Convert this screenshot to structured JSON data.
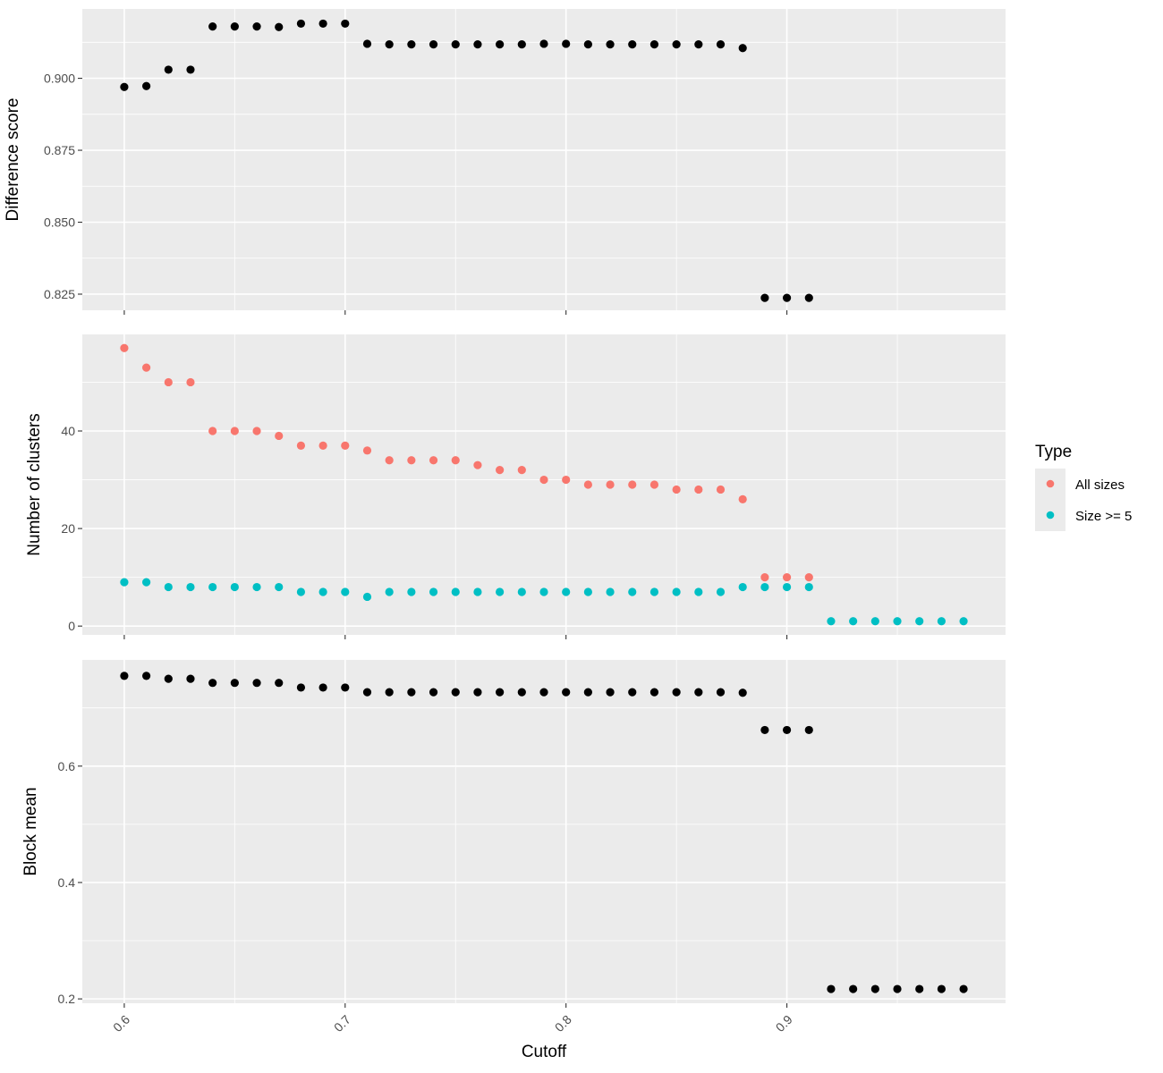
{
  "chart_data": {
    "type": "scatter",
    "x_label": "Cutoff",
    "x_ticks": [
      "0.6",
      "0.7",
      "0.8",
      "0.9"
    ],
    "xlim": [
      0.581,
      0.999
    ],
    "legend": {
      "title": "Type",
      "placement": "right",
      "entries": [
        {
          "name": "All sizes",
          "color": "#F8766D"
        },
        {
          "name": "Size >= 5",
          "color": "#00BFC4"
        }
      ]
    },
    "panels": [
      {
        "ylabel": "Difference score",
        "ylim": [
          0.8194,
          0.9241
        ],
        "y_ticks": [
          "0.825",
          "0.850",
          "0.875",
          "0.900"
        ],
        "tick_values": [
          0.825,
          0.85,
          0.875,
          0.9
        ],
        "series": [
          {
            "color": "#000000",
            "x": [
              0.6,
              0.61,
              0.62,
              0.63,
              0.64,
              0.65,
              0.66,
              0.67,
              0.68,
              0.69,
              0.7,
              0.71,
              0.72,
              0.73,
              0.74,
              0.75,
              0.76,
              0.77,
              0.78,
              0.79,
              0.8,
              0.81,
              0.82,
              0.83,
              0.84,
              0.85,
              0.86,
              0.87,
              0.88,
              0.89,
              0.9,
              0.91
            ],
            "y": [
              0.897,
              0.8973,
              0.903,
              0.903,
              0.918,
              0.918,
              0.918,
              0.9178,
              0.919,
              0.919,
              0.919,
              0.912,
              0.9118,
              0.9118,
              0.9118,
              0.9118,
              0.9118,
              0.9118,
              0.9118,
              0.912,
              0.912,
              0.9118,
              0.9118,
              0.9118,
              0.9118,
              0.9118,
              0.9118,
              0.9118,
              0.9105,
              0.8237,
              0.8237,
              0.8237
            ]
          }
        ]
      },
      {
        "ylabel": "Number of clusters",
        "ylim": [
          -1.8,
          59.8
        ],
        "y_ticks": [
          "0",
          "20",
          "40"
        ],
        "tick_values": [
          0,
          20,
          40
        ],
        "series": [
          {
            "name": "All sizes",
            "color": "#F8766D",
            "x": [
              0.6,
              0.61,
              0.62,
              0.63,
              0.64,
              0.65,
              0.66,
              0.67,
              0.68,
              0.69,
              0.7,
              0.71,
              0.72,
              0.73,
              0.74,
              0.75,
              0.76,
              0.77,
              0.78,
              0.79,
              0.8,
              0.81,
              0.82,
              0.83,
              0.84,
              0.85,
              0.86,
              0.87,
              0.88,
              0.89,
              0.9,
              0.91
            ],
            "y": [
              57,
              53,
              50,
              50,
              40,
              40,
              40,
              39,
              37,
              37,
              37,
              36,
              34,
              34,
              34,
              34,
              33,
              32,
              32,
              30,
              30,
              29,
              29,
              29,
              29,
              28,
              28,
              28,
              26,
              10,
              10,
              10
            ]
          },
          {
            "name": "Size >= 5",
            "color": "#00BFC4",
            "x": [
              0.6,
              0.61,
              0.62,
              0.63,
              0.64,
              0.65,
              0.66,
              0.67,
              0.68,
              0.69,
              0.7,
              0.71,
              0.72,
              0.73,
              0.74,
              0.75,
              0.76,
              0.77,
              0.78,
              0.79,
              0.8,
              0.81,
              0.82,
              0.83,
              0.84,
              0.85,
              0.86,
              0.87,
              0.88,
              0.89,
              0.9,
              0.91,
              0.92,
              0.93,
              0.94,
              0.95,
              0.96,
              0.97,
              0.98
            ],
            "y": [
              9,
              9,
              8,
              8,
              8,
              8,
              8,
              8,
              7,
              7,
              7,
              6,
              7,
              7,
              7,
              7,
              7,
              7,
              7,
              7,
              7,
              7,
              7,
              7,
              7,
              7,
              7,
              7,
              8,
              8,
              8,
              8,
              1,
              1,
              1,
              1,
              1,
              1,
              1
            ]
          }
        ]
      },
      {
        "ylabel": "Block mean",
        "ylim": [
          0.1925,
          0.7825
        ],
        "y_ticks": [
          "0.2",
          "0.4",
          "0.6"
        ],
        "tick_values": [
          0.2,
          0.4,
          0.6
        ],
        "series": [
          {
            "color": "#000000",
            "x": [
              0.6,
              0.61,
              0.62,
              0.63,
              0.64,
              0.65,
              0.66,
              0.67,
              0.68,
              0.69,
              0.7,
              0.71,
              0.72,
              0.73,
              0.74,
              0.75,
              0.76,
              0.77,
              0.78,
              0.79,
              0.8,
              0.81,
              0.82,
              0.83,
              0.84,
              0.85,
              0.86,
              0.87,
              0.88,
              0.89,
              0.9,
              0.91,
              0.92,
              0.93,
              0.94,
              0.95,
              0.96,
              0.97,
              0.98
            ],
            "y": [
              0.755,
              0.755,
              0.75,
              0.75,
              0.743,
              0.743,
              0.743,
              0.743,
              0.735,
              0.735,
              0.735,
              0.727,
              0.727,
              0.727,
              0.727,
              0.727,
              0.727,
              0.727,
              0.727,
              0.727,
              0.727,
              0.727,
              0.727,
              0.727,
              0.727,
              0.727,
              0.727,
              0.727,
              0.726,
              0.662,
              0.662,
              0.662,
              0.217,
              0.217,
              0.217,
              0.217,
              0.217,
              0.217,
              0.217
            ]
          }
        ]
      }
    ]
  }
}
